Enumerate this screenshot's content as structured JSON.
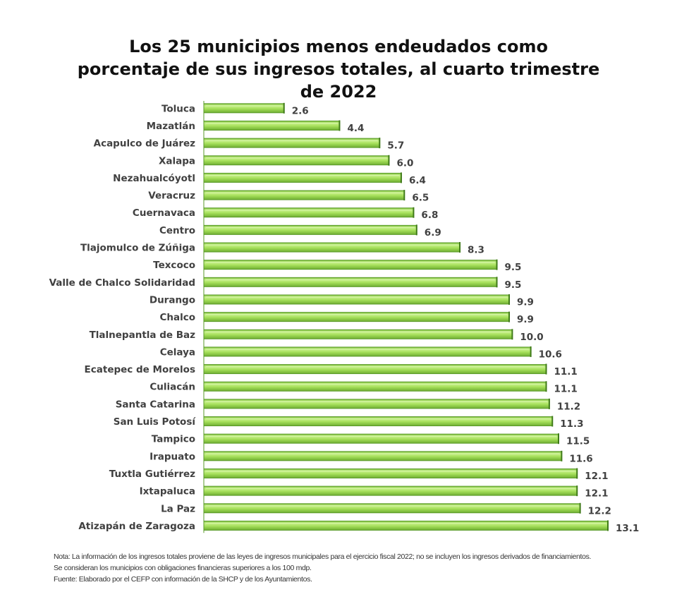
{
  "chart_data": {
    "type": "bar",
    "orientation": "horizontal",
    "title_lines": [
      "Los 25 municipios menos endeudados como",
      "porcentaje de sus ingresos totales, al cuarto trimestre",
      "de 2022"
    ],
    "categories": [
      "Toluca",
      "Mazatlán",
      "Acapulco de Juárez",
      "Xalapa",
      "Nezahualcóyotl",
      "Veracruz",
      "Cuernavaca",
      "Centro",
      "Tlajomulco de Zúñiga",
      "Texcoco",
      "Valle de Chalco Solidaridad",
      "Durango",
      "Chalco",
      "Tlalnepantla de Baz",
      "Celaya",
      "Ecatepec de Morelos",
      "Culiacán",
      "Santa Catarina",
      "San Luis Potosí",
      "Tampico",
      "Irapuato",
      "Tuxtla Gutiérrez",
      "Ixtapaluca",
      "La Paz",
      "Atizapán de Zaragoza"
    ],
    "values": [
      2.6,
      4.4,
      5.7,
      6.0,
      6.4,
      6.5,
      6.8,
      6.9,
      8.3,
      9.5,
      9.5,
      9.9,
      9.9,
      10.0,
      10.6,
      11.1,
      11.1,
      11.2,
      11.3,
      11.5,
      11.6,
      12.1,
      12.1,
      12.2,
      13.1
    ],
    "value_labels": [
      "2.6",
      "4.4",
      "5.7",
      "6.0",
      "6.4",
      "6.5",
      "6.8",
      "6.9",
      "8.3",
      "9.5",
      "9.5",
      "9.9",
      "9.9",
      "10.0",
      "10.6",
      "11.1",
      "11.1",
      "11.2",
      "11.3",
      "11.5",
      "11.6",
      "12.1",
      "12.1",
      "12.2",
      "13.1"
    ],
    "xlim": [
      0,
      13.1
    ],
    "xlabel": "",
    "ylabel": "",
    "grid": false,
    "legend": "none",
    "bar_color": "#a6e05a",
    "bar_edge_color": "#5a9a28"
  },
  "notes": [
    "Nota: La información de los ingresos totales proviene de las leyes de ingresos municipales para el ejercicio  fiscal 2022; no se incluyen los ingresos derivados de financiamientos.",
    "Se consideran los municipios  con obligaciones financieras superiores a los 100 mdp.",
    "Fuente:  Elaborado por el CEFP con información de la SHCP y de los Ayuntamientos."
  ]
}
